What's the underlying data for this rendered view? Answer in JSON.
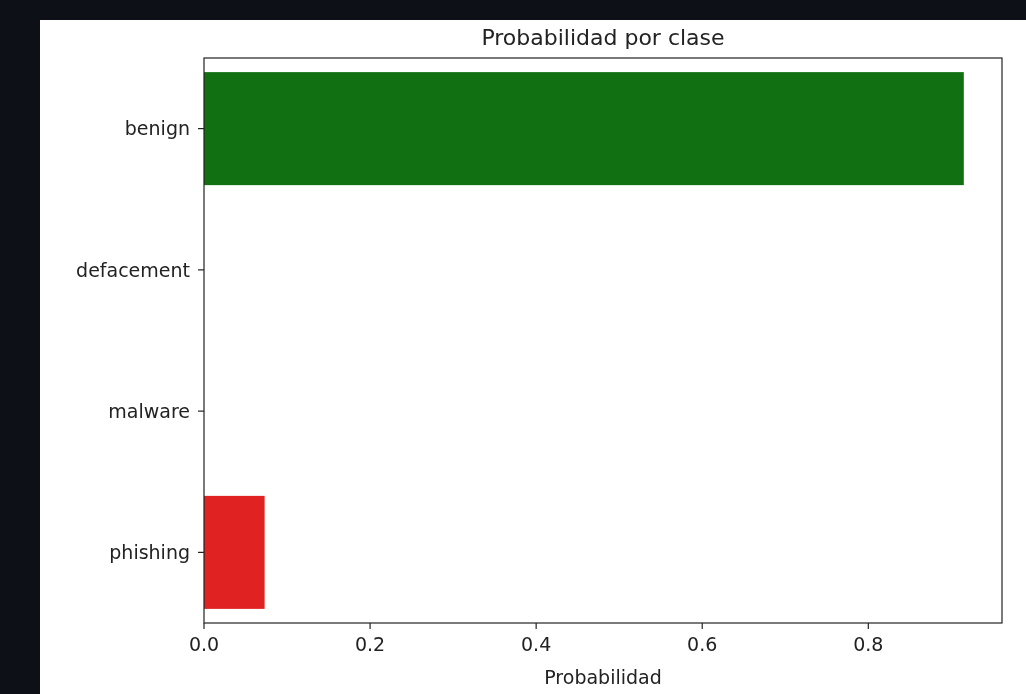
{
  "chart_data": {
    "type": "bar",
    "orientation": "horizontal",
    "title": "Probabilidad por clase",
    "xlabel": "Probabilidad",
    "categories": [
      "benign",
      "defacement",
      "malware",
      "phishing"
    ],
    "values": [
      0.915,
      0,
      0,
      0.073
    ],
    "colors": [
      "#117011",
      null,
      null,
      "#e02222"
    ],
    "xlim": [
      0,
      0.961
    ],
    "xticks": [
      {
        "value": 0,
        "label": "0.0"
      },
      {
        "value": 0.2,
        "label": "0.2"
      },
      {
        "value": 0.4,
        "label": "0.4"
      },
      {
        "value": 0.6,
        "label": "0.6"
      },
      {
        "value": 0.8,
        "label": "0.8"
      }
    ],
    "grid": false
  }
}
